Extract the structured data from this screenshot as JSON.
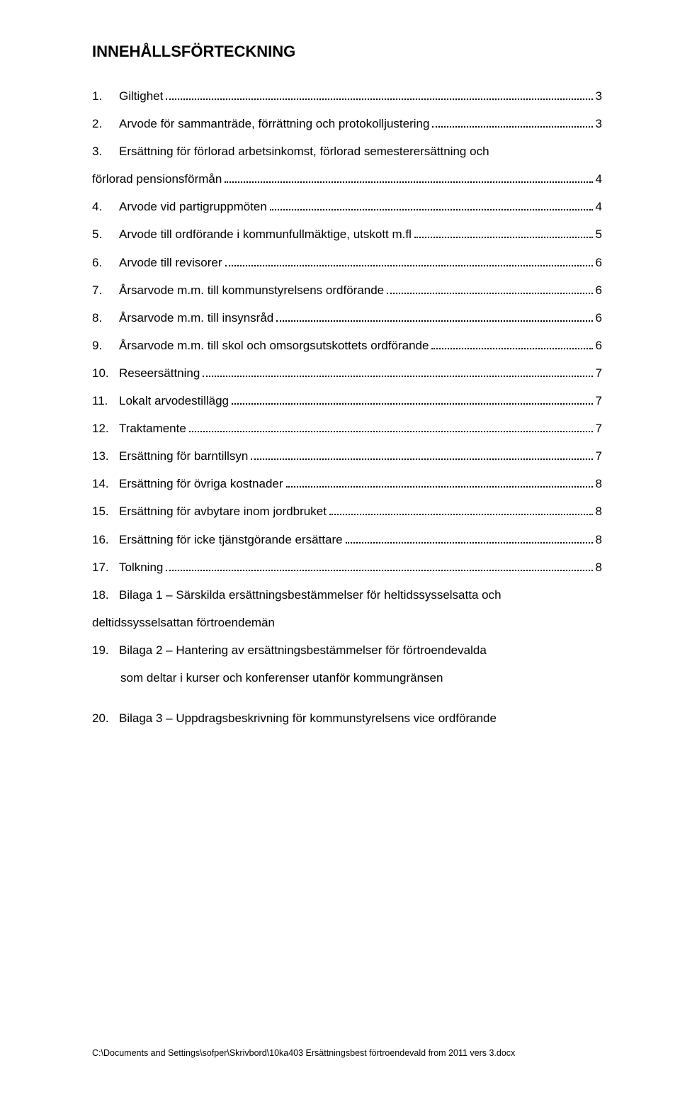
{
  "title": "INNEHÅLLSFÖRTECKNING",
  "toc": [
    {
      "num": "1.",
      "label": "Giltighet",
      "page": "3"
    },
    {
      "num": "2.",
      "label": "Arvode för sammanträde, förrättning och protokolljustering",
      "page": "3"
    },
    {
      "num": "3.",
      "label": "Ersättning för förlorad arbetsinkomst, förlorad semesterersättning och",
      "page": null,
      "cont": "förlorad pensionsförmån",
      "contPage": "4"
    },
    {
      "num": "4.",
      "label": "Arvode vid partigruppmöten",
      "page": "4"
    },
    {
      "num": "5.",
      "label": "Arvode till ordförande i kommunfullmäktige, utskott m.fl",
      "page": "5"
    },
    {
      "num": "6.",
      "label": "Arvode till revisorer",
      "page": "6"
    },
    {
      "num": "7.",
      "label": "Årsarvode m.m. till kommunstyrelsens ordförande",
      "page": "6"
    },
    {
      "num": "8.",
      "label": "Årsarvode m.m. till insynsråd",
      "page": "6"
    },
    {
      "num": "9.",
      "label": "Årsarvode m.m. till skol och omsorgsutskottets ordförande",
      "page": "6"
    },
    {
      "num": "10.",
      "label": "Reseersättning",
      "page": "7"
    },
    {
      "num": "11.",
      "label": "Lokalt arvodestillägg",
      "page": "7"
    },
    {
      "num": "12.",
      "label": "Traktamente",
      "page": "7"
    },
    {
      "num": "13.",
      "label": "Ersättning för barntillsyn",
      "page": "7"
    },
    {
      "num": "14.",
      "label": "Ersättning för övriga kostnader",
      "page": "8"
    },
    {
      "num": "15.",
      "label": "Ersättning för avbytare inom jordbruket",
      "page": "8"
    },
    {
      "num": "16.",
      "label": "Ersättning för icke tjänstgörande ersättare",
      "page": "8"
    },
    {
      "num": "17.",
      "label": "Tolkning",
      "page": "8"
    },
    {
      "num": "18.",
      "label": "Bilaga 1 – Särskilda ersättningsbestämmelser för heltidssysselsatta och",
      "page": null,
      "cont": "deltidssysselsattan förtroendemän",
      "contPage": null,
      "noDotsOnCont": true
    },
    {
      "num": "19.",
      "label": "Bilaga 2 – Hantering av ersättningsbestämmelser för förtroendevalda",
      "page": null,
      "cont": "som deltar i kurser och konferenser utanför kommungränsen",
      "contPage": null,
      "noDotsOnCont": true,
      "contIndent": true
    }
  ],
  "tocLast": {
    "num": "20.",
    "label": "Bilaga 3 – Uppdragsbeskrivning för kommunstyrelsens vice ordförande"
  },
  "footer": "C:\\Documents and Settings\\sofper\\Skrivbord\\10ka403 Ersättningsbest förtroendevald from 2011 vers 3.docx",
  "colors": {
    "text": "#000000",
    "background": "#ffffff"
  },
  "font": {
    "family": "Arial",
    "titleSize": 22,
    "bodySize": 17,
    "footerSize": 12.5
  }
}
